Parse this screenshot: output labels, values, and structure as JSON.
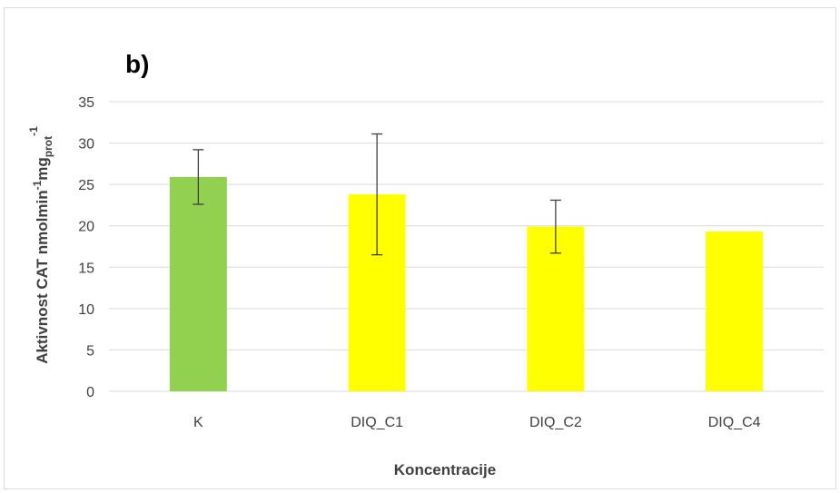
{
  "chart_data": {
    "type": "bar",
    "panel_label": "b)",
    "categories": [
      "K",
      "DIQ_C1",
      "DIQ_C2",
      "DIQ_C4"
    ],
    "values": [
      25.9,
      23.8,
      19.9,
      19.3
    ],
    "errors": [
      3.3,
      7.3,
      3.2,
      null
    ],
    "bar_colors": [
      "#92d050",
      "#ffff00",
      "#ffff00",
      "#ffff00"
    ],
    "ylim": [
      0,
      35
    ],
    "yticks": [
      0,
      5,
      10,
      15,
      20,
      25,
      30,
      35
    ],
    "grid": true,
    "xlabel": "Koncentracije",
    "ylabel": {
      "main": "Aktivnost CAT nmolmin",
      "sup1": "-1",
      "mid": "mg",
      "sub": "prot",
      "sup2": "-1"
    },
    "colors": {
      "grid": "#d9d9d9",
      "text": "#404040",
      "error_bar": "#404040"
    }
  }
}
